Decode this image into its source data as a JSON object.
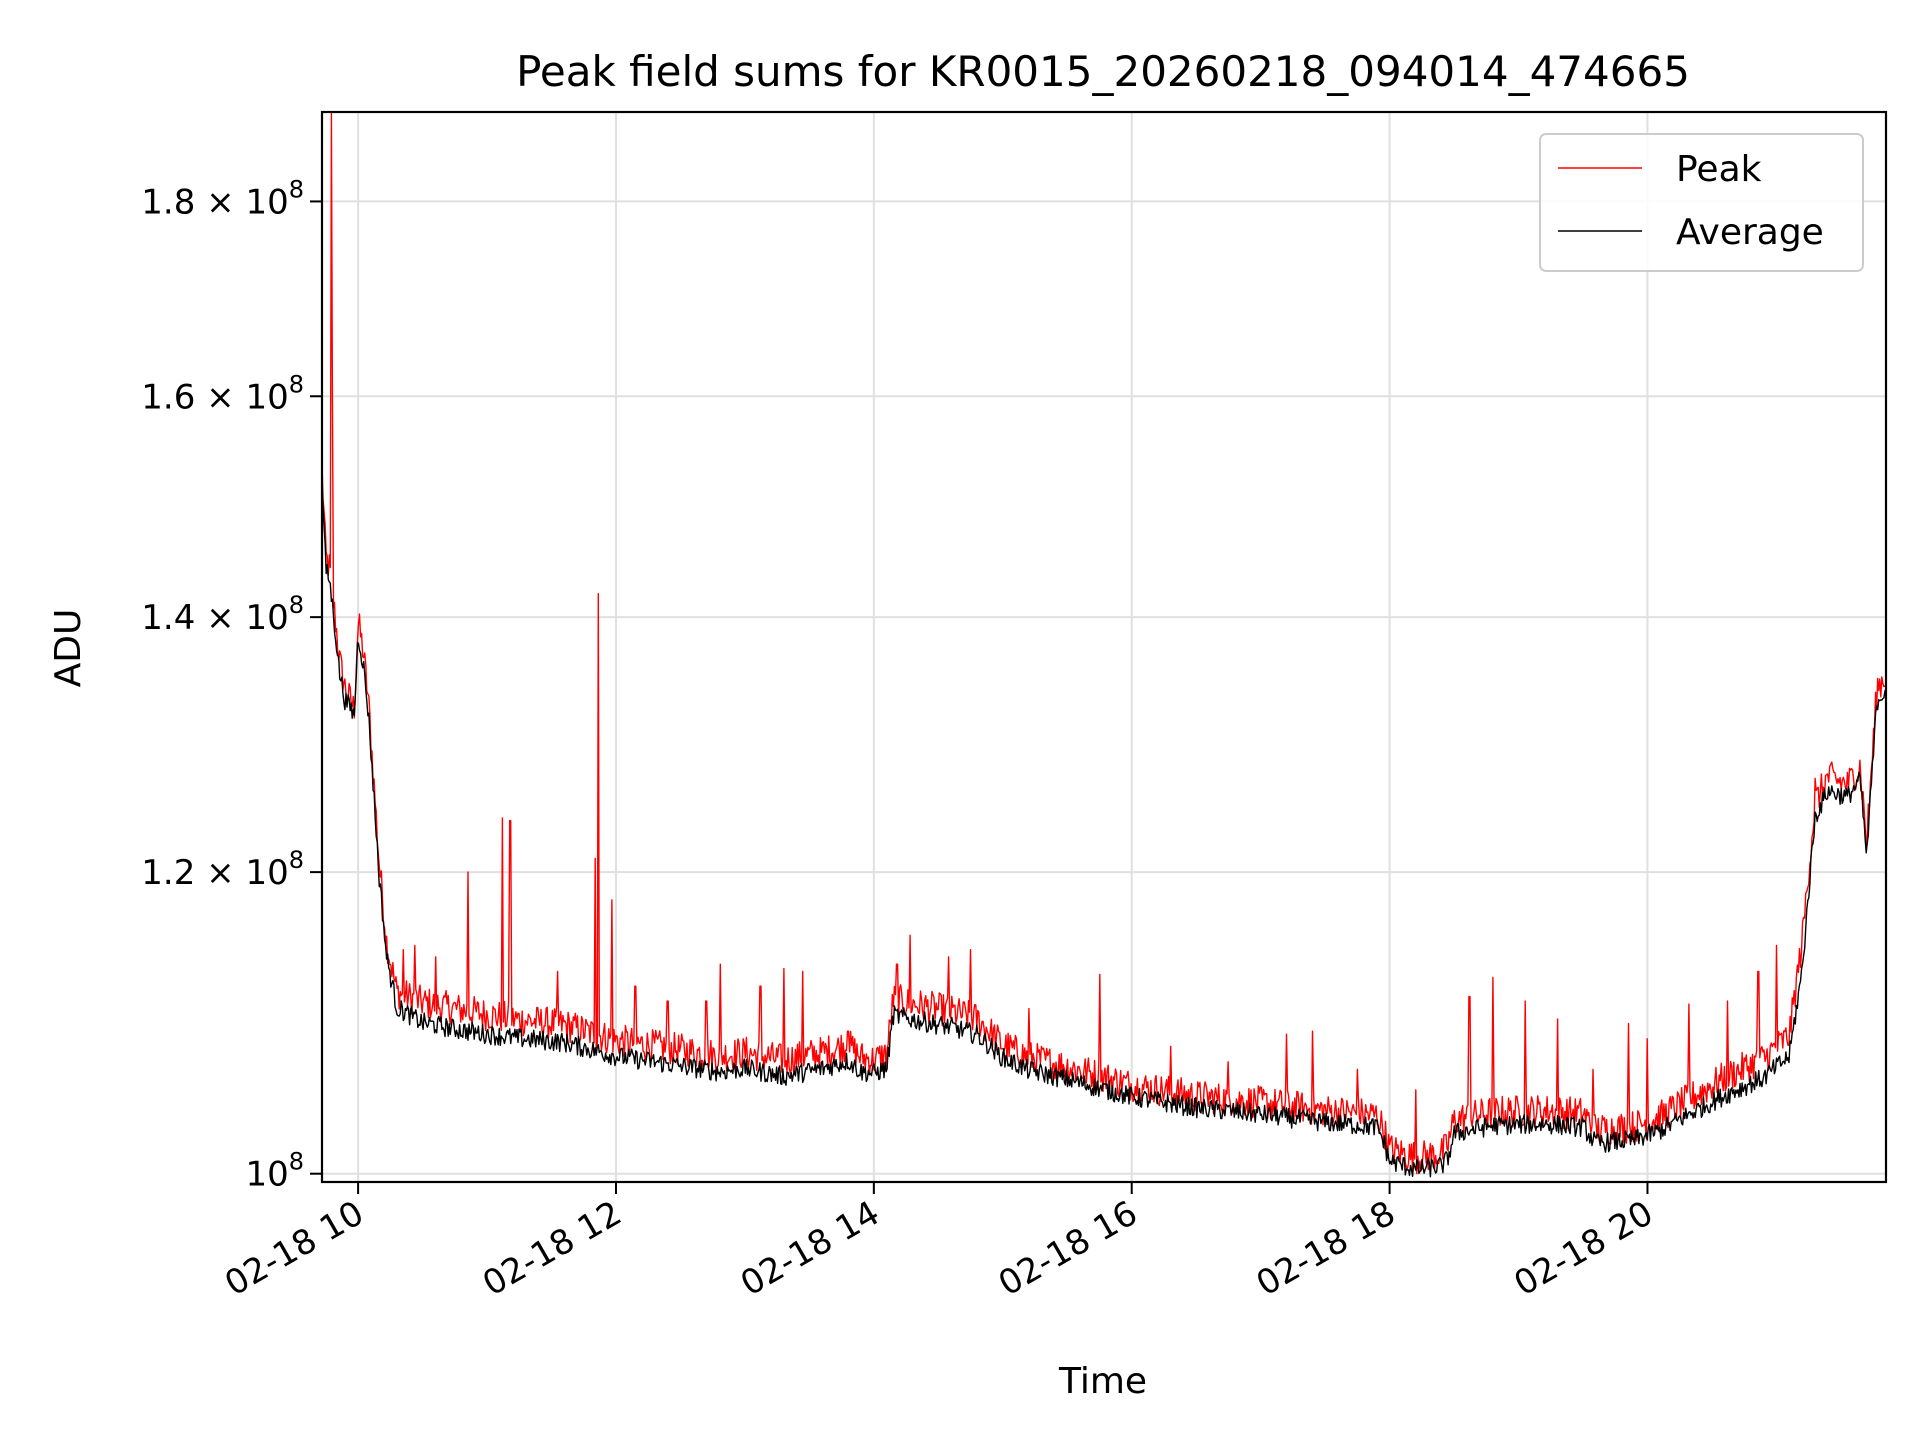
{
  "chart_data": {
    "type": "line",
    "title": "Peak field sums for KR0015_20260218_094014_474665",
    "xlabel": "Time",
    "ylabel": "ADU",
    "yscale": "log",
    "xlim": [
      9.72,
      21.85
    ],
    "ylim": [
      99500000,
      190000000
    ],
    "grid": true,
    "legend_position": "top-right",
    "colors": {
      "peak": "#ff0000",
      "average": "#000000",
      "grid": "#e0e0e0"
    },
    "x_ticks": [
      {
        "value": 10,
        "label": "02-18 10"
      },
      {
        "value": 12,
        "label": "02-18 12"
      },
      {
        "value": 14,
        "label": "02-18 14"
      },
      {
        "value": 16,
        "label": "02-18 16"
      },
      {
        "value": 18,
        "label": "02-18 18"
      },
      {
        "value": 20,
        "label": "02-18 20"
      }
    ],
    "y_ticks": [
      {
        "value": 100000000,
        "base": "10",
        "exp": "8",
        "mantissa": ""
      },
      {
        "value": 120000000,
        "base": "1.2 × 10",
        "exp": "8",
        "mantissa": "1.2"
      },
      {
        "value": 140000000,
        "base": "1.4 × 10",
        "exp": "8",
        "mantissa": "1.4"
      },
      {
        "value": 160000000,
        "base": "1.6 × 10",
        "exp": "8",
        "mantissa": "1.6"
      },
      {
        "value": 180000000,
        "base": "1.8 × 10",
        "exp": "8",
        "mantissa": "1.8"
      }
    ],
    "series": [
      {
        "name": "Average",
        "key": "average",
        "x": [
          9.72,
          9.75,
          9.78,
          9.82,
          9.86,
          9.9,
          9.94,
          9.97,
          10.0,
          10.04,
          10.08,
          10.12,
          10.16,
          10.22,
          10.3,
          10.5,
          10.8,
          11.2,
          11.6,
          12.0,
          12.4,
          12.8,
          13.0,
          13.3,
          13.6,
          13.8,
          13.9,
          14.0,
          14.1,
          14.15,
          14.3,
          14.6,
          14.8,
          15.0,
          15.2,
          15.5,
          16.0,
          16.5,
          17.0,
          17.5,
          17.9,
          17.95,
          18.0,
          18.2,
          18.4,
          18.45,
          18.5,
          18.8,
          19.2,
          19.5,
          19.6,
          19.9,
          20.1,
          20.3,
          20.6,
          20.9,
          21.1,
          21.2,
          21.3,
          21.4,
          21.55,
          21.65,
          21.7,
          21.78,
          21.85
        ],
        "y": [
          152000000,
          144000000,
          143000000,
          139000000,
          135000000,
          133000000,
          132500000,
          131800000,
          138500000,
          136000000,
          132000000,
          126000000,
          120000000,
          114000000,
          110500000,
          109500000,
          109000000,
          108500000,
          108200000,
          107300000,
          106800000,
          106300000,
          106500000,
          106000000,
          106500000,
          107000000,
          106300000,
          106200000,
          106500000,
          110000000,
          109700000,
          109200000,
          108700000,
          107200000,
          106400000,
          105800000,
          104700000,
          104000000,
          103600000,
          103100000,
          102800000,
          102000000,
          100700000,
          100200000,
          100400000,
          100800000,
          102400000,
          102900000,
          103000000,
          102800000,
          101800000,
          102000000,
          102600000,
          103500000,
          104800000,
          105900000,
          107300000,
          113000000,
          124000000,
          126000000,
          125500000,
          126800000,
          121000000,
          133000000,
          134000000
        ],
        "spikes": []
      },
      {
        "name": "Peak",
        "key": "peak",
        "x": [
          9.72,
          9.75,
          9.78,
          9.82,
          9.86,
          9.9,
          9.94,
          9.97,
          10.0,
          10.04,
          10.08,
          10.12,
          10.16,
          10.22,
          10.3,
          10.5,
          10.8,
          11.2,
          11.6,
          12.0,
          12.4,
          12.8,
          13.0,
          13.3,
          13.6,
          13.8,
          13.9,
          14.0,
          14.1,
          14.15,
          14.3,
          14.6,
          14.8,
          15.0,
          15.2,
          15.5,
          16.0,
          16.5,
          17.0,
          17.5,
          17.9,
          17.95,
          18.0,
          18.2,
          18.4,
          18.45,
          18.5,
          18.8,
          19.2,
          19.5,
          19.6,
          19.9,
          20.1,
          20.3,
          20.6,
          20.9,
          21.1,
          21.2,
          21.3,
          21.4,
          21.55,
          21.65,
          21.7,
          21.78,
          21.85
        ],
        "y": [
          153000000,
          145000000,
          144000000,
          140000000,
          136000000,
          134000000,
          133000000,
          132300000,
          139500000,
          137000000,
          133000000,
          127000000,
          121000000,
          115000000,
          111500000,
          110800000,
          110300000,
          109700000,
          109300000,
          108300000,
          107800000,
          107300000,
          107500000,
          107000000,
          107500000,
          108000000,
          107200000,
          107000000,
          107400000,
          111000000,
          110700000,
          110200000,
          109700000,
          108000000,
          107200000,
          106600000,
          105400000,
          104700000,
          104300000,
          103800000,
          103500000,
          102700000,
          101400000,
          100900000,
          101100000,
          101600000,
          103200000,
          103700000,
          103800000,
          103600000,
          102600000,
          102800000,
          103400000,
          104400000,
          105900000,
          107100000,
          108600000,
          115000000,
          125000000,
          127000000,
          126400000,
          127800000,
          122000000,
          134000000,
          135000000
        ],
        "spikes": [
          [
            9.79,
            190000000
          ],
          [
            9.8,
            160000000
          ],
          [
            10.2,
            115000000
          ],
          [
            10.35,
            114500000
          ],
          [
            10.44,
            114800000
          ],
          [
            10.6,
            114000000
          ],
          [
            10.85,
            120000000
          ],
          [
            11.12,
            124000000
          ],
          [
            11.18,
            123800000
          ],
          [
            11.55,
            113000000
          ],
          [
            11.84,
            121000000
          ],
          [
            11.86,
            142000000
          ],
          [
            11.97,
            118000000
          ],
          [
            12.15,
            112000000
          ],
          [
            12.4,
            111000000
          ],
          [
            12.7,
            111000000
          ],
          [
            12.81,
            113500000
          ],
          [
            13.12,
            112000000
          ],
          [
            13.3,
            113200000
          ],
          [
            13.45,
            113000000
          ],
          [
            13.8,
            109000000
          ],
          [
            14.18,
            113500000
          ],
          [
            14.28,
            115500000
          ],
          [
            14.58,
            114000000
          ],
          [
            14.75,
            114500000
          ],
          [
            15.2,
            110500000
          ],
          [
            15.75,
            112800000
          ],
          [
            16.3,
            108000000
          ],
          [
            16.75,
            107000000
          ],
          [
            17.2,
            108800000
          ],
          [
            17.4,
            109000000
          ],
          [
            17.75,
            106500000
          ],
          [
            18.2,
            105200000
          ],
          [
            18.62,
            111300000
          ],
          [
            18.8,
            112600000
          ],
          [
            19.05,
            111000000
          ],
          [
            19.3,
            109800000
          ],
          [
            19.58,
            106500000
          ],
          [
            19.85,
            109500000
          ],
          [
            20.0,
            108500000
          ],
          [
            20.32,
            110800000
          ],
          [
            20.62,
            111000000
          ],
          [
            20.86,
            113000000
          ],
          [
            21.0,
            114800000
          ],
          [
            21.3,
            127000000
          ]
        ]
      }
    ]
  }
}
